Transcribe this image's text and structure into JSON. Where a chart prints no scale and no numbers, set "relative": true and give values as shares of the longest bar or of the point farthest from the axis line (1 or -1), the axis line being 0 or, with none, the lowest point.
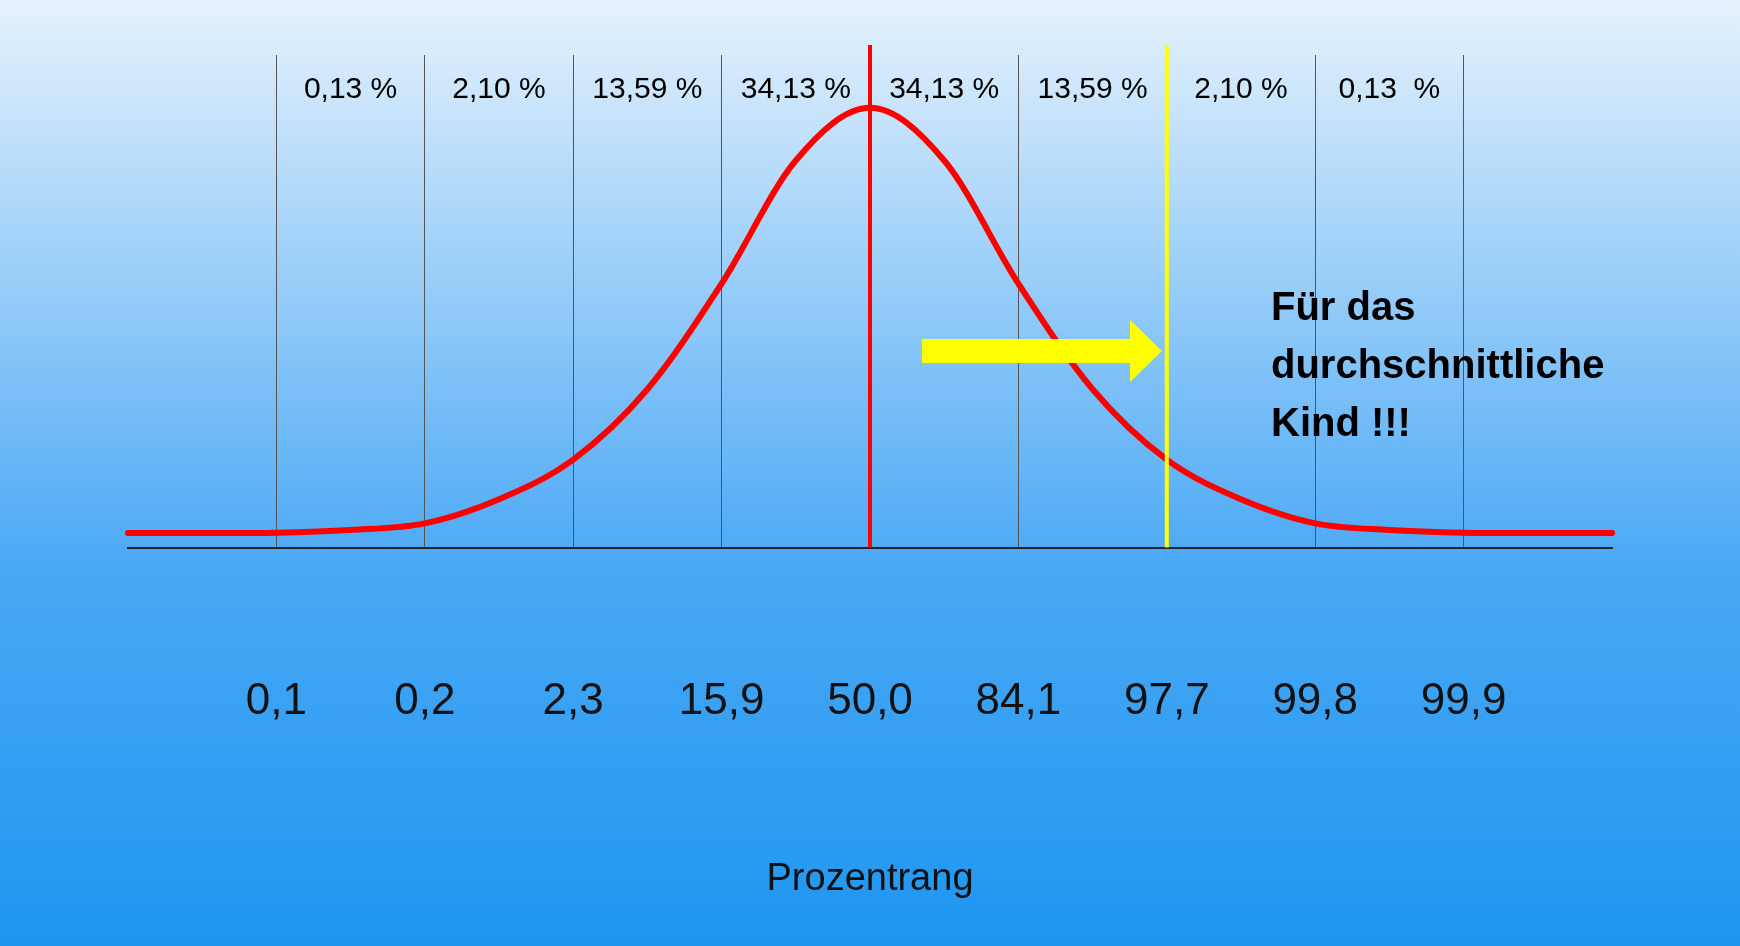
{
  "chart_data": {
    "type": "line",
    "relative": true,
    "xlabel": "Prozentrang",
    "categories": [
      null,
      null,
      "0,1",
      null,
      "0,2",
      null,
      "2,3",
      null,
      "15,9",
      null,
      "50,0",
      null,
      "84,1",
      null,
      "97,7",
      null,
      "99,8",
      null,
      "99,9",
      null,
      null
    ],
    "series": [
      {
        "color": "#ff0000",
        "values": [
          0.033,
          0.033,
          0.034,
          0.04,
          0.055,
          0.11,
          0.2,
          0.36,
          0.6,
          0.88,
          1,
          0.88,
          0.6,
          0.36,
          0.2,
          0.11,
          0.055,
          0.04,
          0.034,
          0.033,
          0.033
        ]
      }
    ],
    "ref_lines": [
      {
        "axis": "x",
        "value": "50,0",
        "color": "#ff0000"
      },
      {
        "axis": "x",
        "value": "97,7",
        "color": "#ffff00"
      }
    ],
    "annotations": [
      "0,13 %",
      "2,10 %",
      "13,59 %",
      "34,13 %",
      "34,13 %",
      "13,59 %",
      "2,10 %",
      "0,13  %",
      "Für das durchschnittliche Kind !!!"
    ],
    "grid": "x",
    "legend": false,
    "tick_labels": "x",
    "marker": "none",
    "line_style": "solid"
  }
}
